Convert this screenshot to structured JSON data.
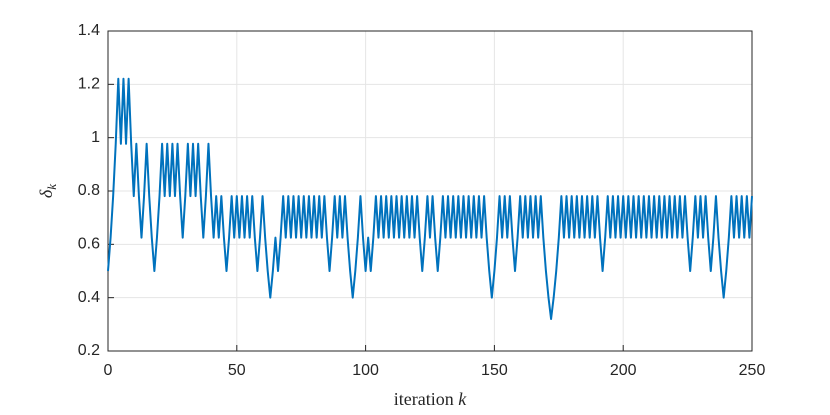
{
  "chart_data": {
    "type": "line",
    "xlabel": "iteration",
    "xlabel_var": "k",
    "ylabel": "δ",
    "ylabel_sub": "k",
    "x": [
      0,
      1,
      2,
      3,
      4,
      5,
      6,
      7,
      8,
      9,
      10,
      11,
      12,
      13,
      14,
      15,
      16,
      17,
      18,
      19,
      20,
      21,
      22,
      23,
      24,
      25,
      26,
      27,
      28,
      29,
      30,
      31,
      32,
      33,
      34,
      35,
      36,
      37,
      38,
      39,
      40,
      41,
      42,
      43,
      44,
      45,
      46,
      47,
      48,
      49,
      50,
      51,
      52,
      53,
      54,
      55,
      56,
      57,
      58,
      59,
      60,
      61,
      62,
      63,
      64,
      65,
      66,
      67,
      68,
      69,
      70,
      71,
      72,
      73,
      74,
      75,
      76,
      77,
      78,
      79,
      80,
      81,
      82,
      83,
      84,
      85,
      86,
      87,
      88,
      89,
      90,
      91,
      92,
      93,
      94,
      95,
      96,
      97,
      98,
      99,
      100,
      101,
      102,
      103,
      104,
      105,
      106,
      107,
      108,
      109,
      110,
      111,
      112,
      113,
      114,
      115,
      116,
      117,
      118,
      119,
      120,
      121,
      122,
      123,
      124,
      125,
      126,
      127,
      128,
      129,
      130,
      131,
      132,
      133,
      134,
      135,
      136,
      137,
      138,
      139,
      140,
      141,
      142,
      143,
      144,
      145,
      146,
      147,
      148,
      149,
      150,
      151,
      152,
      153,
      154,
      155,
      156,
      157,
      158,
      159,
      160,
      161,
      162,
      163,
      164,
      165,
      166,
      167,
      168,
      169,
      170,
      171,
      172,
      173,
      174,
      175,
      176,
      177,
      178,
      179,
      180,
      181,
      182,
      183,
      184,
      185,
      186,
      187,
      188,
      189,
      190,
      191,
      192,
      193,
      194,
      195,
      196,
      197,
      198,
      199,
      200,
      201,
      202,
      203,
      204,
      205,
      206,
      207,
      208,
      209,
      210,
      211,
      212,
      213,
      214,
      215,
      216,
      217,
      218,
      219,
      220,
      221,
      222,
      223,
      224,
      225,
      226,
      227,
      228,
      229,
      230,
      231,
      232,
      233,
      234,
      235,
      236,
      237,
      238,
      239,
      240,
      241,
      242,
      243,
      244,
      245,
      246,
      247,
      248,
      249,
      250
    ],
    "values": [
      0.5,
      0.625,
      0.781,
      0.977,
      1.221,
      0.977,
      1.221,
      0.977,
      1.221,
      0.977,
      0.781,
      0.977,
      0.781,
      0.625,
      0.781,
      0.977,
      0.781,
      0.625,
      0.5,
      0.625,
      0.781,
      0.977,
      0.781,
      0.977,
      0.781,
      0.977,
      0.781,
      0.977,
      0.781,
      0.625,
      0.781,
      0.977,
      0.781,
      0.977,
      0.781,
      0.977,
      0.781,
      0.625,
      0.781,
      0.977,
      0.781,
      0.625,
      0.781,
      0.625,
      0.781,
      0.625,
      0.5,
      0.625,
      0.781,
      0.625,
      0.781,
      0.625,
      0.781,
      0.625,
      0.781,
      0.625,
      0.781,
      0.625,
      0.5,
      0.625,
      0.781,
      0.625,
      0.5,
      0.4,
      0.5,
      0.625,
      0.5,
      0.625,
      0.781,
      0.625,
      0.781,
      0.625,
      0.781,
      0.625,
      0.781,
      0.625,
      0.781,
      0.625,
      0.781,
      0.625,
      0.781,
      0.625,
      0.781,
      0.625,
      0.781,
      0.625,
      0.5,
      0.625,
      0.781,
      0.625,
      0.781,
      0.625,
      0.781,
      0.625,
      0.5,
      0.4,
      0.5,
      0.625,
      0.781,
      0.625,
      0.5,
      0.625,
      0.5,
      0.625,
      0.781,
      0.625,
      0.781,
      0.625,
      0.781,
      0.625,
      0.781,
      0.625,
      0.781,
      0.625,
      0.781,
      0.625,
      0.781,
      0.625,
      0.781,
      0.625,
      0.781,
      0.625,
      0.5,
      0.625,
      0.781,
      0.625,
      0.781,
      0.625,
      0.5,
      0.625,
      0.781,
      0.625,
      0.781,
      0.625,
      0.781,
      0.625,
      0.781,
      0.625,
      0.781,
      0.625,
      0.781,
      0.625,
      0.781,
      0.625,
      0.781,
      0.625,
      0.781,
      0.625,
      0.5,
      0.4,
      0.5,
      0.625,
      0.781,
      0.625,
      0.781,
      0.625,
      0.781,
      0.625,
      0.5,
      0.625,
      0.781,
      0.625,
      0.781,
      0.625,
      0.781,
      0.625,
      0.781,
      0.625,
      0.781,
      0.625,
      0.5,
      0.4,
      0.32,
      0.4,
      0.5,
      0.625,
      0.781,
      0.625,
      0.781,
      0.625,
      0.781,
      0.625,
      0.781,
      0.625,
      0.781,
      0.625,
      0.781,
      0.625,
      0.781,
      0.625,
      0.781,
      0.625,
      0.5,
      0.625,
      0.781,
      0.625,
      0.781,
      0.625,
      0.781,
      0.625,
      0.781,
      0.625,
      0.781,
      0.625,
      0.781,
      0.625,
      0.781,
      0.625,
      0.781,
      0.625,
      0.781,
      0.625,
      0.781,
      0.625,
      0.781,
      0.625,
      0.781,
      0.625,
      0.781,
      0.625,
      0.781,
      0.625,
      0.781,
      0.625,
      0.781,
      0.625,
      0.5,
      0.625,
      0.781,
      0.625,
      0.781,
      0.625,
      0.781,
      0.625,
      0.5,
      0.625,
      0.781,
      0.625,
      0.5,
      0.4,
      0.5,
      0.625,
      0.781,
      0.625,
      0.781,
      0.625,
      0.781,
      0.625,
      0.781,
      0.625,
      0.781
    ],
    "color": "#0072bd",
    "xlim": [
      0,
      250
    ],
    "xticks": [
      0,
      50,
      100,
      150,
      200,
      250
    ],
    "ylim": [
      0.2,
      1.4
    ],
    "yticks": [
      0.2,
      0.4,
      0.6,
      0.8,
      1,
      1.2,
      1.4
    ],
    "grid": true
  }
}
